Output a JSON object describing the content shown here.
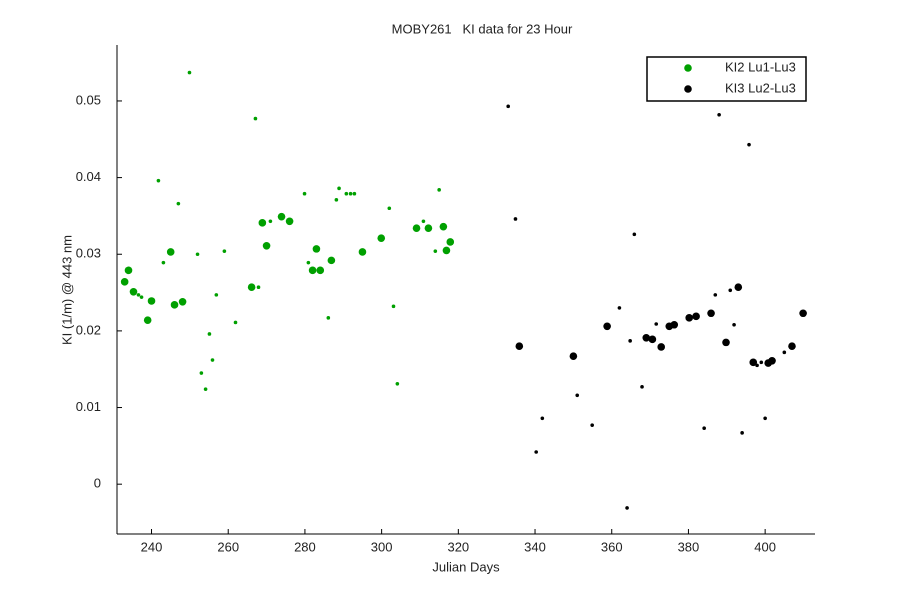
{
  "chart_data": {
    "type": "scatter",
    "title": "MOBY261   KI data for 23 Hour",
    "x_label": "Julian Days",
    "y_label": "KI (1/m) @ 443 nm",
    "xlim": [
      231,
      413
    ],
    "ylim": [
      -0.0065,
      0.0573
    ],
    "xticks": [
      240,
      260,
      280,
      300,
      320,
      340,
      360,
      380,
      400
    ],
    "yticks": [
      0,
      0.01,
      0.02,
      0.03,
      0.04,
      0.05
    ],
    "grid": false,
    "legend_position": "upper right",
    "series": [
      {
        "name": "KI2 Lu1-Lu3",
        "color": "#00a000",
        "x": [
          233.0,
          234.0,
          235.3,
          239.0,
          240.0,
          245.0,
          246.0,
          248.1,
          266.1,
          268.9,
          270.0,
          273.9,
          276.0,
          282.0,
          283.0,
          284.0,
          286.9,
          295.0,
          299.9,
          309.1,
          312.2,
          316.1,
          316.9,
          317.9,
          236.6,
          237.4,
          241.8,
          243.1,
          247.0,
          249.9,
          252.0,
          253.0,
          254.1,
          255.1,
          255.9,
          256.9,
          259.0,
          261.9,
          267.1,
          267.9,
          271.0,
          279.9,
          280.9,
          286.1,
          288.2,
          288.9,
          290.8,
          291.9,
          292.9,
          302.0,
          303.1,
          304.1,
          310.9,
          314.0,
          315.0
        ],
        "values": [
          0.0264,
          0.0279,
          0.0251,
          0.0214,
          0.0239,
          0.0303,
          0.0234,
          0.0238,
          0.0257,
          0.0341,
          0.0311,
          0.0349,
          0.0343,
          0.0279,
          0.0307,
          0.0279,
          0.0292,
          0.0303,
          0.0321,
          0.0334,
          0.0334,
          0.0336,
          0.0305,
          0.0316,
          0.0247,
          0.0244,
          0.0396,
          0.0289,
          0.0366,
          0.0537,
          0.03,
          0.0145,
          0.0124,
          0.0196,
          0.0162,
          0.0247,
          0.0304,
          0.0211,
          0.0477,
          0.0257,
          0.0343,
          0.0379,
          0.0289,
          0.0217,
          0.0371,
          0.0386,
          0.0379,
          0.0379,
          0.0379,
          0.036,
          0.0232,
          0.0131,
          0.0343,
          0.0304,
          0.0384
        ],
        "markers": [
          "large",
          "large",
          "large",
          "large",
          "large",
          "large",
          "large",
          "large",
          "large",
          "large",
          "large",
          "large",
          "large",
          "large",
          "large",
          "large",
          "large",
          "large",
          "large",
          "large",
          "large",
          "large",
          "large",
          "large",
          "small",
          "small",
          "small",
          "small",
          "small",
          "small",
          "small",
          "small",
          "small",
          "small",
          "small",
          "small",
          "small",
          "small",
          "small",
          "small",
          "small",
          "small",
          "small",
          "small",
          "small",
          "small",
          "small",
          "small",
          "small",
          "small",
          "small",
          "small",
          "small",
          "small",
          "small"
        ]
      },
      {
        "name": "KI3 Lu2-Lu3",
        "color": "#000000",
        "x": [
          335.9,
          350.0,
          358.8,
          369.0,
          370.6,
          372.9,
          375.0,
          376.3,
          380.2,
          382.0,
          385.9,
          389.8,
          393.0,
          396.9,
          400.8,
          401.8,
          407.0,
          409.9,
          333.0,
          334.9,
          340.3,
          341.9,
          351.0,
          354.9,
          362.0,
          364.0,
          364.8,
          365.9,
          367.9,
          371.6,
          384.1,
          387.0,
          388.0,
          390.9,
          391.9,
          394.0,
          395.8,
          397.9,
          399.0,
          400.0,
          405.0
        ],
        "values": [
          0.018,
          0.0167,
          0.0206,
          0.0191,
          0.0189,
          0.0179,
          0.0206,
          0.0208,
          0.0217,
          0.0219,
          0.0223,
          0.0185,
          0.0257,
          0.0159,
          0.0158,
          0.0161,
          0.018,
          0.0223,
          0.0493,
          0.0346,
          0.0042,
          0.0086,
          0.0116,
          0.0077,
          0.023,
          -0.0031,
          0.0187,
          0.0326,
          0.0127,
          0.0209,
          0.0073,
          0.0247,
          0.0482,
          0.0253,
          0.0208,
          0.0067,
          0.0443,
          0.0155,
          0.0159,
          0.0086,
          0.0172
        ],
        "markers": [
          "large",
          "large",
          "large",
          "large",
          "large",
          "large",
          "large",
          "large",
          "large",
          "large",
          "large",
          "large",
          "large",
          "large",
          "large",
          "large",
          "large",
          "large",
          "small",
          "small",
          "small",
          "small",
          "small",
          "small",
          "small",
          "small",
          "small",
          "small",
          "small",
          "small",
          "small",
          "small",
          "small",
          "small",
          "small",
          "small",
          "small",
          "small",
          "small",
          "small",
          "small"
        ]
      }
    ]
  }
}
